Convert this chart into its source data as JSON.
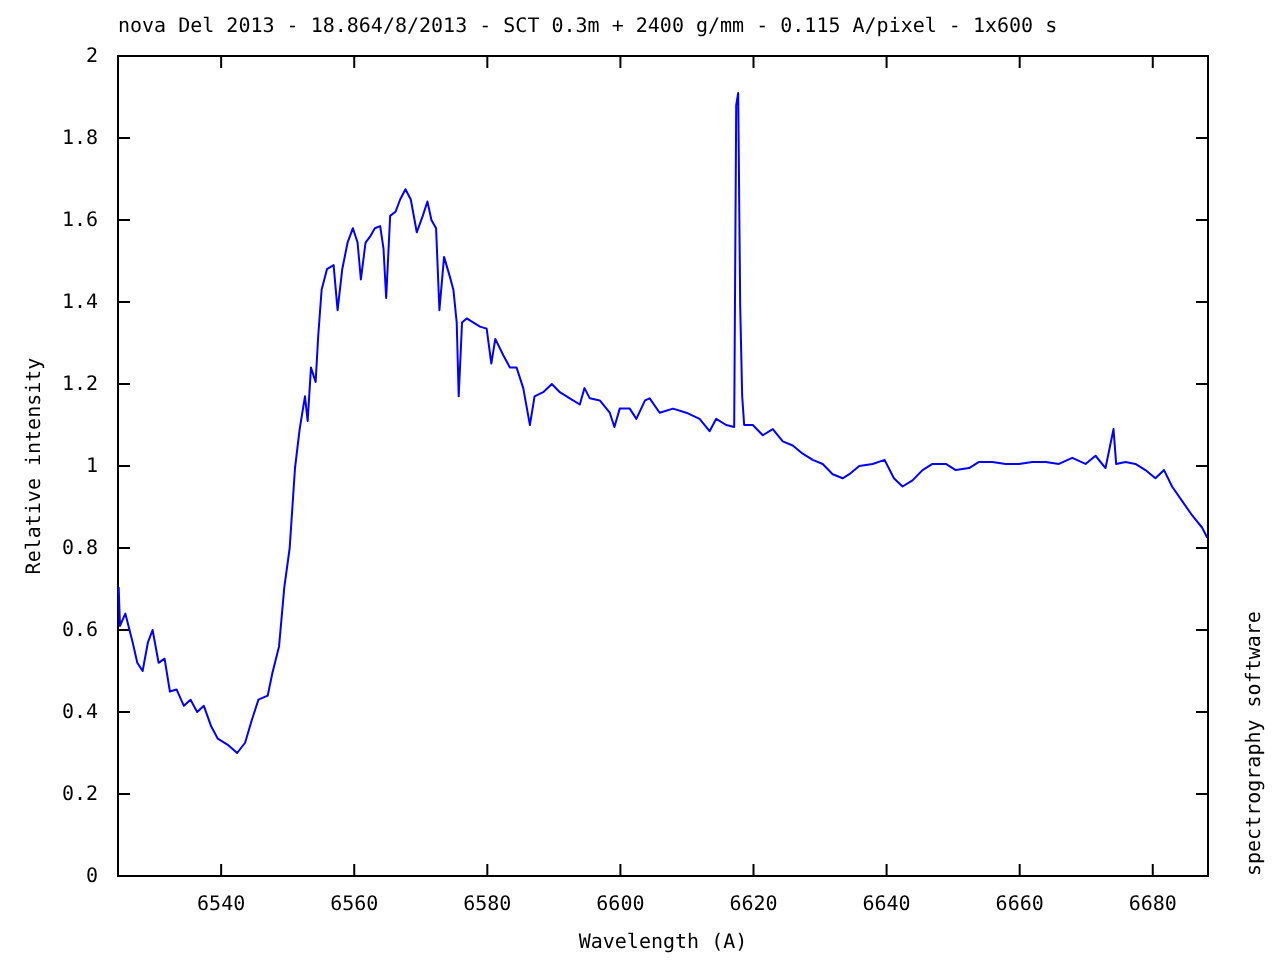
{
  "chart_data": {
    "type": "line",
    "title": "nova Del 2013 - 18.864/8/2013 - SCT 0.3m + 2400 g/mm - 0.115 A/pixel - 1x600 s",
    "xlabel": "Wavelength (A)",
    "ylabel": "Relative intensity",
    "annotations": [
      "spectrography software"
    ],
    "x": [
      6524.6,
      6524.8,
      6525.6,
      6526.7,
      6527.4,
      6528.2,
      6529.0,
      6529.7,
      6530.6,
      6531.5,
      6532.3,
      6533.3,
      6534.4,
      6535.4,
      6536.4,
      6537.4,
      6538.5,
      6539.5,
      6541.0,
      6542.4,
      6543.6,
      6544.6,
      6545.6,
      6547.0,
      6547.7,
      6548.7,
      6549.5,
      6550.3,
      6551.1,
      6551.8,
      6552.6,
      6553.0,
      6553.5,
      6554.2,
      6554.6,
      6555.1,
      6555.9,
      6556.9,
      6557.5,
      6558.2,
      6559.0,
      6559.8,
      6560.5,
      6561.0,
      6561.7,
      6562.4,
      6563.1,
      6563.9,
      6564.4,
      6564.8,
      6565.4,
      6566.2,
      6566.9,
      6567.7,
      6568.5,
      6569.4,
      6570.3,
      6571.0,
      6571.6,
      6572.3,
      6572.8,
      6573.5,
      6574.4,
      6574.9,
      6575.4,
      6575.7,
      6576.2,
      6576.9,
      6578.9,
      6579.9,
      6580.6,
      6581.2,
      6582.4,
      6583.4,
      6584.4,
      6585.4,
      6586.4,
      6587.1,
      6588.4,
      6589.7,
      6590.9,
      6592.4,
      6593.9,
      6594.6,
      6595.4,
      6596.9,
      6598.4,
      6599.1,
      6599.9,
      6601.4,
      6602.4,
      6603.7,
      6604.4,
      6605.9,
      6607.9,
      6609.9,
      6611.9,
      6613.4,
      6614.4,
      6615.9,
      6617.1,
      6617.4,
      6617.7,
      6618.0,
      6618.3,
      6618.6,
      6619.9,
      6621.4,
      6622.9,
      6624.4,
      6625.9,
      6627.4,
      6628.9,
      6630.4,
      6631.9,
      6633.4,
      6634.4,
      6635.9,
      6637.9,
      6639.7,
      6641.1,
      6642.4,
      6643.9,
      6645.4,
      6646.9,
      6648.9,
      6650.4,
      6652.4,
      6653.9,
      6655.9,
      6657.9,
      6659.9,
      6661.9,
      6663.9,
      6665.9,
      6667.9,
      6669.9,
      6671.4,
      6672.9,
      6674.1,
      6674.5,
      6675.9,
      6677.4,
      6678.9,
      6680.4,
      6681.7,
      6682.9,
      6684.4,
      6685.9,
      6687.4,
      6688.2
    ],
    "series": [
      {
        "color": "#0000ff",
        "values": [
          0.705,
          0.61,
          0.64,
          0.57,
          0.52,
          0.5,
          0.57,
          0.6,
          0.52,
          0.53,
          0.45,
          0.455,
          0.415,
          0.43,
          0.4,
          0.415,
          0.365,
          0.335,
          0.32,
          0.3,
          0.325,
          0.38,
          0.43,
          0.44,
          0.495,
          0.56,
          0.705,
          0.8,
          0.995,
          1.09,
          1.17,
          1.11,
          1.24,
          1.205,
          1.32,
          1.43,
          1.48,
          1.49,
          1.38,
          1.48,
          1.545,
          1.58,
          1.545,
          1.455,
          1.545,
          1.56,
          1.58,
          1.585,
          1.53,
          1.41,
          1.61,
          1.62,
          1.65,
          1.675,
          1.65,
          1.57,
          1.61,
          1.645,
          1.6,
          1.58,
          1.38,
          1.51,
          1.46,
          1.43,
          1.35,
          1.17,
          1.35,
          1.36,
          1.34,
          1.335,
          1.25,
          1.31,
          1.27,
          1.24,
          1.24,
          1.19,
          1.1,
          1.17,
          1.18,
          1.2,
          1.18,
          1.165,
          1.15,
          1.19,
          1.165,
          1.16,
          1.13,
          1.095,
          1.14,
          1.14,
          1.115,
          1.16,
          1.165,
          1.13,
          1.14,
          1.13,
          1.115,
          1.085,
          1.115,
          1.1,
          1.095,
          1.88,
          1.91,
          1.39,
          1.17,
          1.1,
          1.1,
          1.075,
          1.09,
          1.06,
          1.05,
          1.03,
          1.015,
          1.005,
          0.98,
          0.97,
          0.98,
          1.0,
          1.005,
          1.015,
          0.97,
          0.95,
          0.965,
          0.99,
          1.005,
          1.005,
          0.99,
          0.995,
          1.01,
          1.01,
          1.005,
          1.005,
          1.01,
          1.01,
          1.005,
          1.02,
          1.005,
          1.025,
          0.995,
          1.09,
          1.005,
          1.01,
          1.005,
          0.99,
          0.97,
          0.99,
          0.95,
          0.915,
          0.88,
          0.85,
          0.825
        ]
      }
    ],
    "xlim": [
      6524.5,
      6688.3
    ],
    "xticks": [
      6540,
      6560,
      6580,
      6600,
      6620,
      6640,
      6660,
      6680
    ],
    "ylim": [
      0,
      2
    ],
    "yticks": [
      0,
      0.2,
      0.4,
      0.6,
      0.8,
      1,
      1.2,
      1.4,
      1.6,
      1.8,
      2
    ],
    "grid": false,
    "marker": "none",
    "line_style": "solid"
  }
}
